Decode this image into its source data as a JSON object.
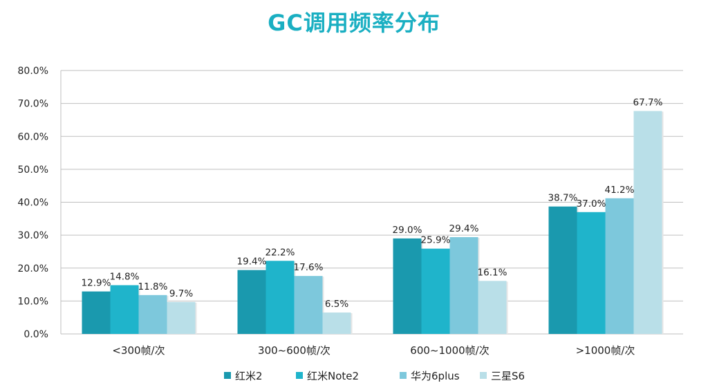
{
  "chart_data": {
    "type": "bar",
    "title": "GC调用频率分布",
    "categories": [
      "<300帧/次",
      "300~600帧/次",
      "600~1000帧/次",
      ">1000帧/次"
    ],
    "ylim": [
      0,
      80
    ],
    "yticks": [
      "0.0%",
      "10.0%",
      "20.0%",
      "30.0%",
      "40.0%",
      "50.0%",
      "60.0%",
      "70.0%",
      "80.0%"
    ],
    "grid": true,
    "legend_position": "bottom",
    "series": [
      {
        "name": "红米2",
        "color": "#1A99AE",
        "values": [
          12.9,
          19.4,
          29.0,
          38.7
        ],
        "labels": [
          "12.9%",
          "19.4%",
          "29.0%",
          "38.7%"
        ]
      },
      {
        "name": "红米Note2",
        "color": "#1FB4CB",
        "values": [
          14.8,
          22.2,
          25.9,
          37.0
        ],
        "labels": [
          "14.8%",
          "22.2%",
          "25.9%",
          "37.0%"
        ]
      },
      {
        "name": "华为6plus",
        "color": "#7DC8DC",
        "values": [
          11.8,
          17.6,
          29.4,
          41.2
        ],
        "labels": [
          "11.8%",
          "17.6%",
          "29.4%",
          "41.2%"
        ]
      },
      {
        "name": "三星S6",
        "color": "#B9DFE8",
        "values": [
          9.7,
          6.5,
          16.1,
          67.7
        ],
        "labels": [
          "9.7%",
          "6.5%",
          "16.1%",
          "67.7%"
        ]
      }
    ]
  }
}
